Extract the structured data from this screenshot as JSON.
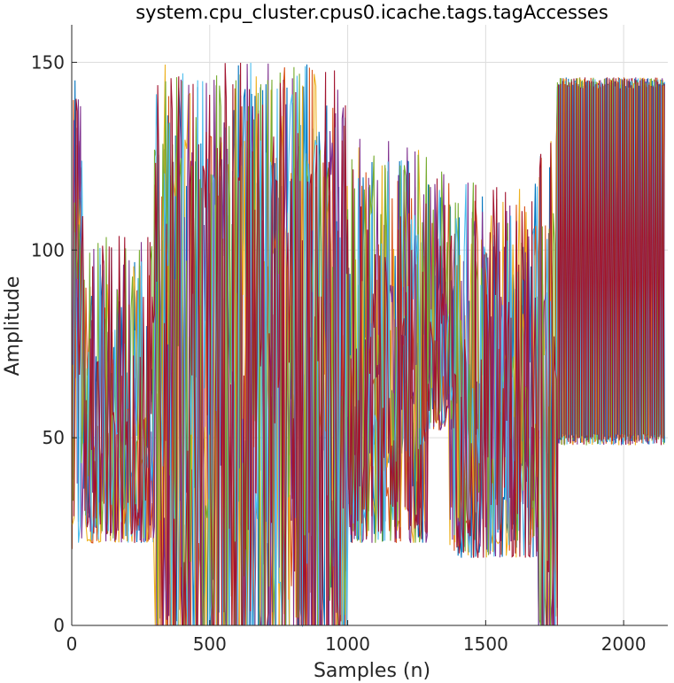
{
  "chart_data": {
    "type": "line",
    "title": "system.cpu_cluster.cpus0.icache.tags.tagAccesses",
    "xlabel": "Samples (n)",
    "ylabel": "Amplitude",
    "xlim": [
      0,
      2160
    ],
    "ylim": [
      0,
      160
    ],
    "xticks": [
      0,
      500,
      1000,
      1500,
      2000
    ],
    "yticks": [
      0,
      50,
      100,
      150
    ],
    "grid": true,
    "legend": "none",
    "series_colors": [
      "#0072BD",
      "#D95319",
      "#EDB120",
      "#7E2F8E",
      "#77AC30",
      "#4DBEEE",
      "#A2142F"
    ],
    "regions": [
      {
        "x": [
          0,
          40
        ],
        "low": 20,
        "high": 146,
        "note": "initial spike"
      },
      {
        "x": [
          40,
          300
        ],
        "low": 22,
        "high": 104
      },
      {
        "x": [
          300,
          1000
        ],
        "low": 0,
        "high": 150
      },
      {
        "x": [
          1000,
          1290
        ],
        "low": 22,
        "high": 130
      },
      {
        "x": [
          1290,
          1370
        ],
        "low": 52,
        "high": 122
      },
      {
        "x": [
          1370,
          1690
        ],
        "low": 18,
        "high": 118
      },
      {
        "x": [
          1690,
          1760
        ],
        "low": 0,
        "high": 130
      },
      {
        "x": [
          1760,
          2150
        ],
        "low": 48,
        "high": 146
      }
    ]
  }
}
